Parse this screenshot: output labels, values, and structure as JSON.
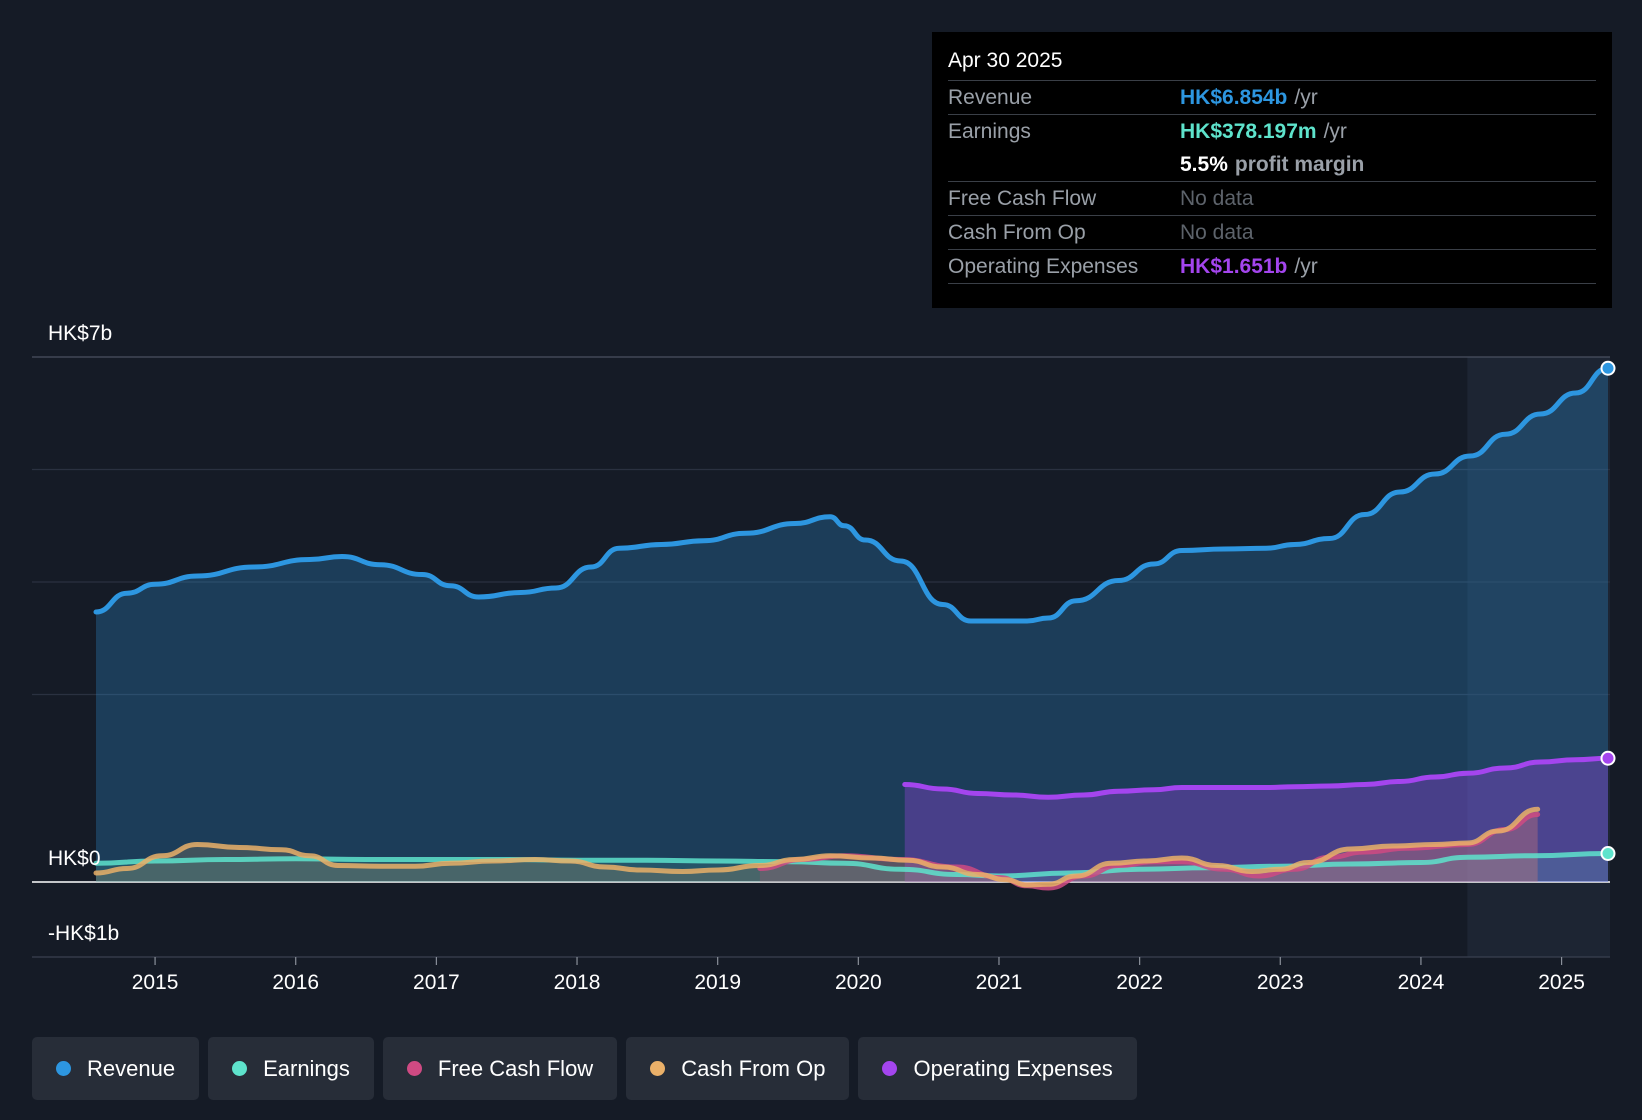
{
  "tooltip": {
    "date": "Apr 30 2025",
    "rows": {
      "revenue": {
        "label": "Revenue",
        "value": "HK$6.854b",
        "unit": "/yr"
      },
      "earnings": {
        "label": "Earnings",
        "value": "HK$378.197m",
        "unit": "/yr"
      },
      "margin": {
        "value": "5.5%",
        "text": "profit margin"
      },
      "fcf": {
        "label": "Free Cash Flow",
        "value": "No data"
      },
      "cfo": {
        "label": "Cash From Op",
        "value": "No data"
      },
      "opex": {
        "label": "Operating Expenses",
        "value": "HK$1.651b",
        "unit": "/yr"
      }
    }
  },
  "legend": [
    {
      "label": "Revenue",
      "color": "#2d96e0"
    },
    {
      "label": "Earnings",
      "color": "#5ee3cc"
    },
    {
      "label": "Free Cash Flow",
      "color": "#cf4a83"
    },
    {
      "label": "Cash From Op",
      "color": "#eab069"
    },
    {
      "label": "Operating Expenses",
      "color": "#a445ee"
    }
  ],
  "chart_data": {
    "type": "line",
    "y_label_top": "HK$7b",
    "y_label_zero": "HK$0",
    "y_label_bottom": "-HK$1b",
    "ylim": [
      -1,
      7
    ],
    "xlim": [
      2014.58,
      2025.33
    ],
    "x_ticks": [
      2015,
      2016,
      2017,
      2018,
      2019,
      2020,
      2021,
      2022,
      2023,
      2024,
      2025
    ],
    "x_tick_labels": [
      "2015",
      "2016",
      "2017",
      "2018",
      "2019",
      "2020",
      "2021",
      "2022",
      "2023",
      "2024",
      "2025"
    ],
    "forecast_start": 2024.33,
    "series": [
      {
        "name": "Revenue",
        "color": "#2d96e0",
        "fill": true,
        "x": [
          2014.58,
          2014.8,
          2015.0,
          2015.3,
          2015.7,
          2016.1,
          2016.33,
          2016.6,
          2016.9,
          2017.1,
          2017.3,
          2017.6,
          2017.85,
          2018.1,
          2018.3,
          2018.6,
          2018.9,
          2019.2,
          2019.55,
          2019.8,
          2019.9,
          2020.05,
          2020.3,
          2020.6,
          2020.8,
          2021.0,
          2021.2,
          2021.35,
          2021.55,
          2021.85,
          2022.1,
          2022.3,
          2022.6,
          2022.9,
          2023.1,
          2023.35,
          2023.6,
          2023.85,
          2024.1,
          2024.35,
          2024.6,
          2024.85,
          2025.1,
          2025.33
        ],
        "y": [
          3.6,
          3.85,
          3.97,
          4.08,
          4.2,
          4.3,
          4.34,
          4.23,
          4.1,
          3.95,
          3.8,
          3.86,
          3.92,
          4.2,
          4.45,
          4.5,
          4.55,
          4.65,
          4.78,
          4.87,
          4.75,
          4.56,
          4.28,
          3.7,
          3.48,
          3.48,
          3.48,
          3.52,
          3.75,
          4.02,
          4.24,
          4.42,
          4.44,
          4.45,
          4.5,
          4.58,
          4.9,
          5.2,
          5.44,
          5.68,
          5.97,
          6.24,
          6.52,
          6.85
        ]
      },
      {
        "name": "Earnings",
        "color": "#5ee3cc",
        "fill": true,
        "x": [
          2014.58,
          2015.0,
          2015.5,
          2016.0,
          2016.5,
          2017.0,
          2017.5,
          2018.0,
          2018.5,
          2019.0,
          2019.5,
          2019.9,
          2020.3,
          2020.7,
          2021.0,
          2021.5,
          2022.0,
          2022.5,
          2023.0,
          2023.5,
          2024.0,
          2024.33,
          2024.8,
          2025.33
        ],
        "y": [
          0.25,
          0.28,
          0.3,
          0.31,
          0.3,
          0.3,
          0.3,
          0.29,
          0.29,
          0.28,
          0.27,
          0.25,
          0.17,
          0.1,
          0.08,
          0.12,
          0.17,
          0.19,
          0.21,
          0.24,
          0.26,
          0.33,
          0.35,
          0.38
        ]
      },
      {
        "name": "Free Cash Flow",
        "color": "#cf4a83",
        "fill": true,
        "x": [
          2019.3,
          2019.6,
          2019.9,
          2020.3,
          2020.7,
          2021.0,
          2021.2,
          2021.35,
          2021.6,
          2021.85,
          2022.1,
          2022.3,
          2022.6,
          2022.85,
          2023.1,
          2023.35,
          2023.6,
          2023.9,
          2024.33,
          2024.6,
          2024.83
        ],
        "y": [
          0.18,
          0.3,
          0.35,
          0.3,
          0.2,
          0.06,
          -0.05,
          -0.08,
          0.08,
          0.22,
          0.27,
          0.27,
          0.17,
          0.08,
          0.17,
          0.33,
          0.4,
          0.45,
          0.5,
          0.7,
          0.9
        ]
      },
      {
        "name": "Cash From Op",
        "color": "#eab069",
        "fill": true,
        "x": [
          2014.58,
          2014.8,
          2015.05,
          2015.3,
          2015.6,
          2015.9,
          2016.1,
          2016.3,
          2016.6,
          2016.85,
          2017.1,
          2017.4,
          2017.7,
          2017.95,
          2018.2,
          2018.45,
          2018.75,
          2019.0,
          2019.3,
          2019.55,
          2019.8,
          2020.1,
          2020.35,
          2020.6,
          2020.85,
          2021.05,
          2021.2,
          2021.35,
          2021.55,
          2021.8,
          2022.05,
          2022.3,
          2022.55,
          2022.8,
          2023.0,
          2023.2,
          2023.5,
          2023.8,
          2024.1,
          2024.33,
          2024.55,
          2024.83
        ],
        "y": [
          0.12,
          0.18,
          0.35,
          0.5,
          0.46,
          0.43,
          0.35,
          0.22,
          0.21,
          0.21,
          0.25,
          0.28,
          0.3,
          0.28,
          0.2,
          0.16,
          0.14,
          0.16,
          0.22,
          0.3,
          0.35,
          0.32,
          0.29,
          0.2,
          0.1,
          0.03,
          -0.04,
          -0.03,
          0.08,
          0.25,
          0.28,
          0.32,
          0.22,
          0.14,
          0.17,
          0.26,
          0.44,
          0.48,
          0.5,
          0.52,
          0.68,
          0.97
        ]
      },
      {
        "name": "Operating Expenses",
        "color": "#a445ee",
        "fill": true,
        "x": [
          2020.33,
          2020.6,
          2020.85,
          2021.1,
          2021.35,
          2021.6,
          2021.85,
          2022.1,
          2022.3,
          2022.6,
          2022.9,
          2023.1,
          2023.35,
          2023.6,
          2023.85,
          2024.1,
          2024.33,
          2024.6,
          2024.85,
          2025.1,
          2025.33
        ],
        "y": [
          1.3,
          1.24,
          1.18,
          1.16,
          1.13,
          1.16,
          1.21,
          1.23,
          1.26,
          1.26,
          1.26,
          1.27,
          1.28,
          1.3,
          1.34,
          1.4,
          1.45,
          1.52,
          1.6,
          1.63,
          1.65
        ]
      }
    ]
  }
}
